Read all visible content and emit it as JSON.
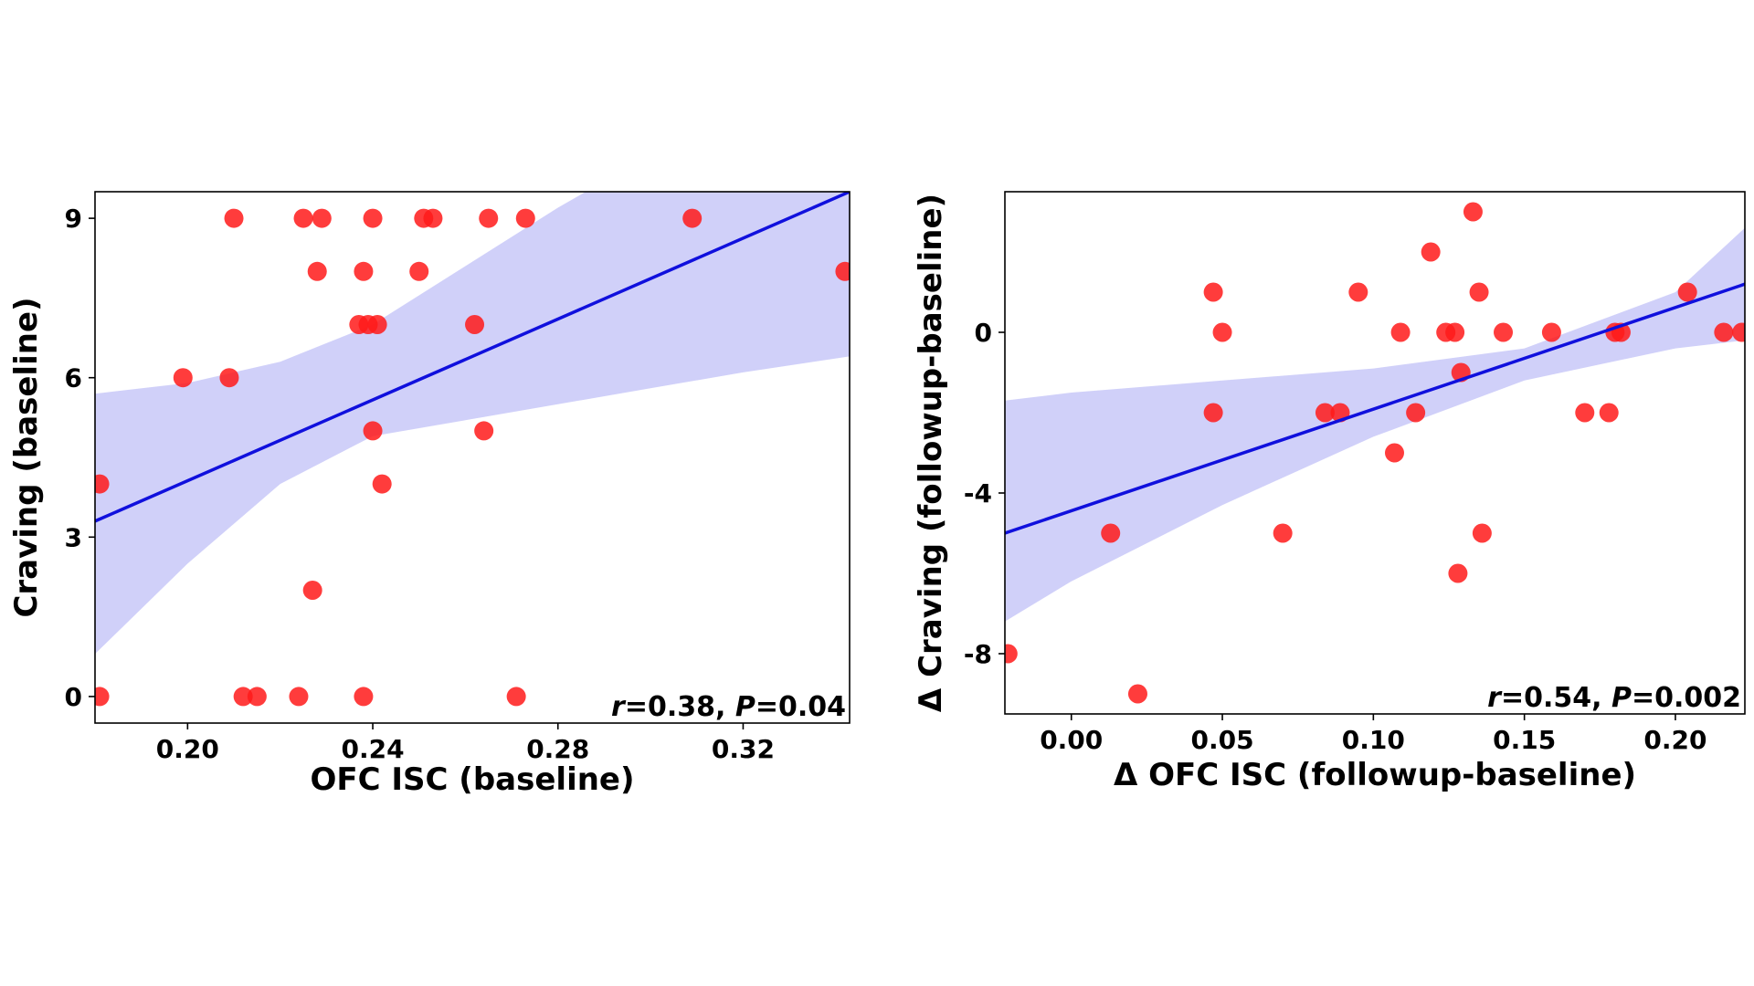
{
  "chart_data": [
    {
      "type": "scatter",
      "title": "",
      "xlabel": "OFC ISC (baseline)",
      "ylabel": "Craving (baseline)",
      "xlim": [
        0.18,
        0.343
      ],
      "ylim": [
        -0.5,
        9.5
      ],
      "xticks": [
        0.2,
        0.24,
        0.28,
        0.32
      ],
      "xtick_labels": [
        "0.20",
        "0.24",
        "0.28",
        "0.32"
      ],
      "yticks": [
        0,
        3,
        6,
        9
      ],
      "ytick_labels": [
        "0",
        "3",
        "6",
        "9"
      ],
      "annotation": {
        "r_symbol": "r",
        "r_text": "=0.38, ",
        "p_symbol": "P",
        "p_text": "=0.04"
      },
      "points": [
        {
          "x": 0.181,
          "y": 4
        },
        {
          "x": 0.181,
          "y": 0
        },
        {
          "x": 0.199,
          "y": 6
        },
        {
          "x": 0.209,
          "y": 6
        },
        {
          "x": 0.21,
          "y": 9
        },
        {
          "x": 0.212,
          "y": 0
        },
        {
          "x": 0.215,
          "y": 0
        },
        {
          "x": 0.224,
          "y": 0
        },
        {
          "x": 0.225,
          "y": 9
        },
        {
          "x": 0.227,
          "y": 2
        },
        {
          "x": 0.228,
          "y": 8
        },
        {
          "x": 0.229,
          "y": 9
        },
        {
          "x": 0.237,
          "y": 7
        },
        {
          "x": 0.238,
          "y": 8
        },
        {
          "x": 0.239,
          "y": 7
        },
        {
          "x": 0.238,
          "y": 0
        },
        {
          "x": 0.24,
          "y": 9
        },
        {
          "x": 0.24,
          "y": 5
        },
        {
          "x": 0.241,
          "y": 7
        },
        {
          "x": 0.242,
          "y": 4
        },
        {
          "x": 0.25,
          "y": 8
        },
        {
          "x": 0.251,
          "y": 9
        },
        {
          "x": 0.253,
          "y": 9
        },
        {
          "x": 0.262,
          "y": 7
        },
        {
          "x": 0.264,
          "y": 5
        },
        {
          "x": 0.265,
          "y": 9
        },
        {
          "x": 0.271,
          "y": 0
        },
        {
          "x": 0.273,
          "y": 9
        },
        {
          "x": 0.309,
          "y": 9
        },
        {
          "x": 0.342,
          "y": 8
        }
      ],
      "fit_line": {
        "x": [
          0.18,
          0.343
        ],
        "y": [
          3.3,
          9.5
        ]
      },
      "ci_band": {
        "x": [
          0.18,
          0.2,
          0.22,
          0.24,
          0.26,
          0.28,
          0.3,
          0.32,
          0.343
        ],
        "upper": [
          5.7,
          5.9,
          6.3,
          7.0,
          8.1,
          9.2,
          10.2,
          11.3,
          12.6
        ],
        "lower": [
          0.8,
          2.5,
          4.0,
          4.9,
          5.2,
          5.5,
          5.8,
          6.1,
          6.4
        ]
      },
      "colors": {
        "points": "#ff1a1a",
        "line": "#1010dd",
        "band": "#c8c8f8"
      }
    },
    {
      "type": "scatter",
      "title": "",
      "xlabel": "Δ OFC ISC (followup-baseline)",
      "ylabel": "Δ Craving (followup-baseline)",
      "xlim": [
        -0.022,
        0.223
      ],
      "ylim": [
        -9.5,
        3.5
      ],
      "xticks": [
        0.0,
        0.05,
        0.1,
        0.15,
        0.2
      ],
      "xtick_labels": [
        "0.00",
        "0.05",
        "0.10",
        "0.15",
        "0.20"
      ],
      "yticks": [
        -8,
        -4,
        0
      ],
      "ytick_labels": [
        "-8",
        "-4",
        "0"
      ],
      "annotation": {
        "r_symbol": "r",
        "r_text": "=0.54, ",
        "p_symbol": "P",
        "p_text": "=0.002"
      },
      "points": [
        {
          "x": -0.021,
          "y": -8
        },
        {
          "x": 0.013,
          "y": -5
        },
        {
          "x": 0.022,
          "y": -9
        },
        {
          "x": 0.047,
          "y": 1
        },
        {
          "x": 0.047,
          "y": -2
        },
        {
          "x": 0.05,
          "y": 0
        },
        {
          "x": 0.07,
          "y": -5
        },
        {
          "x": 0.084,
          "y": -2
        },
        {
          "x": 0.089,
          "y": -2
        },
        {
          "x": 0.095,
          "y": 1
        },
        {
          "x": 0.107,
          "y": -3
        },
        {
          "x": 0.109,
          "y": 0
        },
        {
          "x": 0.114,
          "y": -2
        },
        {
          "x": 0.119,
          "y": 2
        },
        {
          "x": 0.124,
          "y": 0
        },
        {
          "x": 0.127,
          "y": 0
        },
        {
          "x": 0.128,
          "y": -6
        },
        {
          "x": 0.129,
          "y": -1
        },
        {
          "x": 0.133,
          "y": 3
        },
        {
          "x": 0.135,
          "y": 1
        },
        {
          "x": 0.136,
          "y": -5
        },
        {
          "x": 0.143,
          "y": 0
        },
        {
          "x": 0.159,
          "y": 0
        },
        {
          "x": 0.17,
          "y": -2
        },
        {
          "x": 0.178,
          "y": -2
        },
        {
          "x": 0.18,
          "y": 0
        },
        {
          "x": 0.182,
          "y": 0
        },
        {
          "x": 0.204,
          "y": 1
        },
        {
          "x": 0.216,
          "y": 0
        },
        {
          "x": 0.222,
          "y": 0
        }
      ],
      "fit_line": {
        "x": [
          -0.022,
          0.223
        ],
        "y": [
          -5.0,
          1.2
        ]
      },
      "ci_band": {
        "x": [
          -0.022,
          0.0,
          0.05,
          0.1,
          0.15,
          0.2,
          0.223
        ],
        "upper": [
          -1.7,
          -1.5,
          -1.2,
          -0.9,
          -0.4,
          1.0,
          2.6
        ],
        "lower": [
          -7.2,
          -6.2,
          -4.3,
          -2.6,
          -1.2,
          -0.4,
          -0.2
        ]
      },
      "colors": {
        "points": "#ff1a1a",
        "line": "#1010dd",
        "band": "#c8c8f8"
      }
    }
  ]
}
